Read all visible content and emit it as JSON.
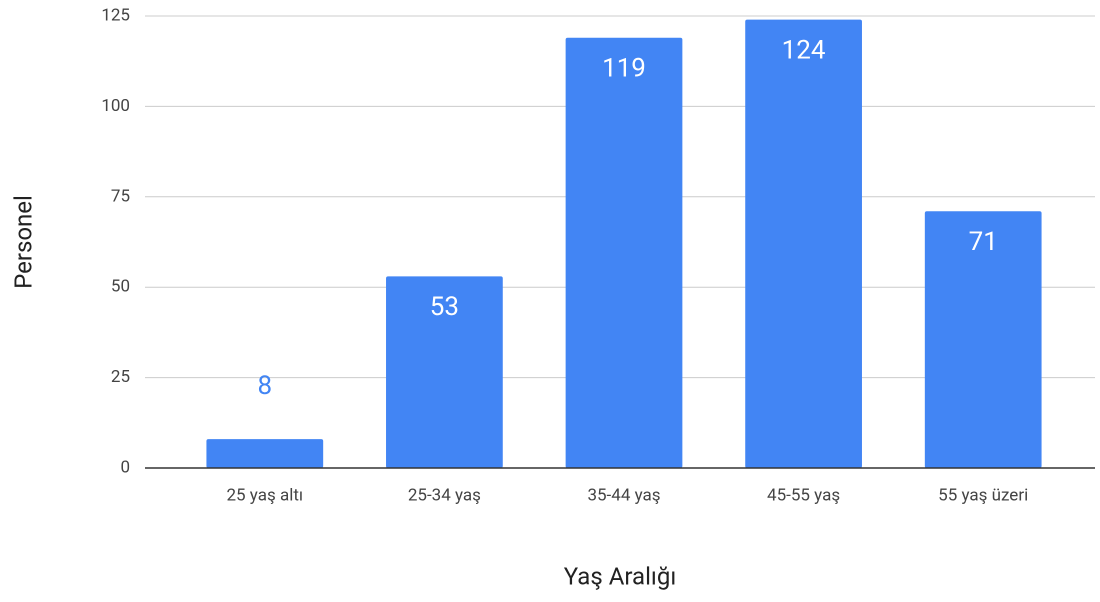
{
  "chart_data": {
    "type": "bar",
    "x_label": "Yaş Aralığı",
    "y_label": "Personel",
    "categories": [
      "25 yaş altı",
      "25-34 yaş",
      "35-44 yaş",
      "45-55 yaş",
      "55 yaş üzeri"
    ],
    "values": [
      8,
      53,
      119,
      124,
      71
    ],
    "color": "#4285f4",
    "ylim": [
      0,
      125
    ],
    "yticks": [
      0,
      25,
      50,
      75,
      100,
      125
    ],
    "grid": true
  }
}
